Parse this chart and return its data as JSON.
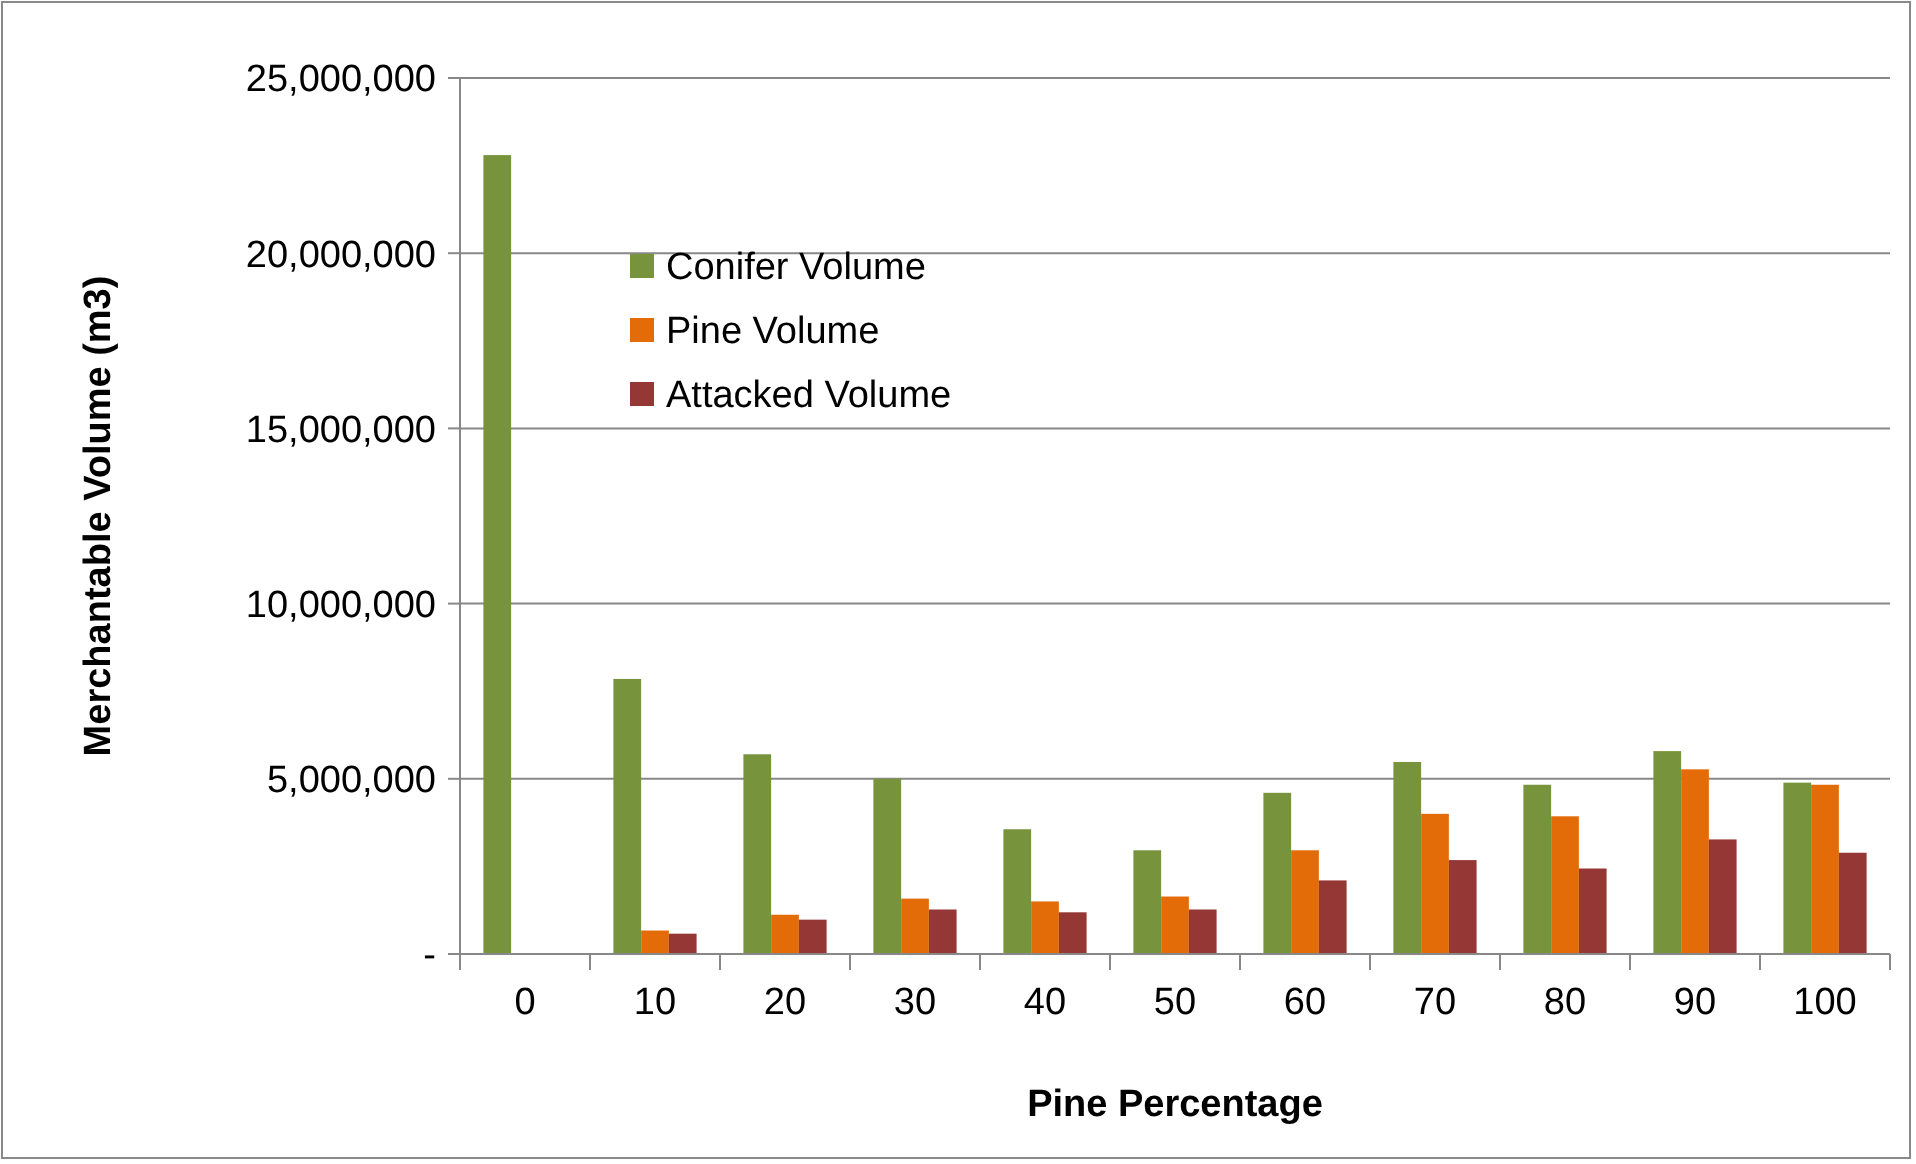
{
  "chart_data": {
    "type": "bar",
    "xlabel": "Pine Percentage",
    "ylabel": "Merchantable Volume (m3)",
    "categories": [
      "0",
      "10",
      "20",
      "30",
      "40",
      "50",
      "60",
      "70",
      "80",
      "90",
      "100"
    ],
    "series": [
      {
        "name": "Conifer Volume",
        "color": "#77933c",
        "values": [
          22800000,
          7850000,
          5700000,
          5000000,
          3560000,
          2960000,
          4600000,
          5480000,
          4830000,
          5790000,
          4890000
        ]
      },
      {
        "name": "Pine Volume",
        "color": "#e36c09",
        "values": [
          null,
          670000,
          1120000,
          1580000,
          1500000,
          1640000,
          2960000,
          4000000,
          3930000,
          5270000,
          4830000
        ]
      },
      {
        "name": "Attacked Volume",
        "color": "#953735",
        "values": [
          null,
          580000,
          980000,
          1270000,
          1190000,
          1270000,
          2100000,
          2680000,
          2440000,
          3270000,
          2890000
        ]
      }
    ],
    "ylim": [
      0,
      25000000
    ],
    "yticks": [
      {
        "value": 0,
        "label": "-"
      },
      {
        "value": 5000000,
        "label": "5,000,000"
      },
      {
        "value": 10000000,
        "label": "10,000,000"
      },
      {
        "value": 15000000,
        "label": "15,000,000"
      },
      {
        "value": 20000000,
        "label": "20,000,000"
      },
      {
        "value": 25000000,
        "label": "25,000,000"
      }
    ],
    "grid": "y",
    "legend": "top"
  }
}
